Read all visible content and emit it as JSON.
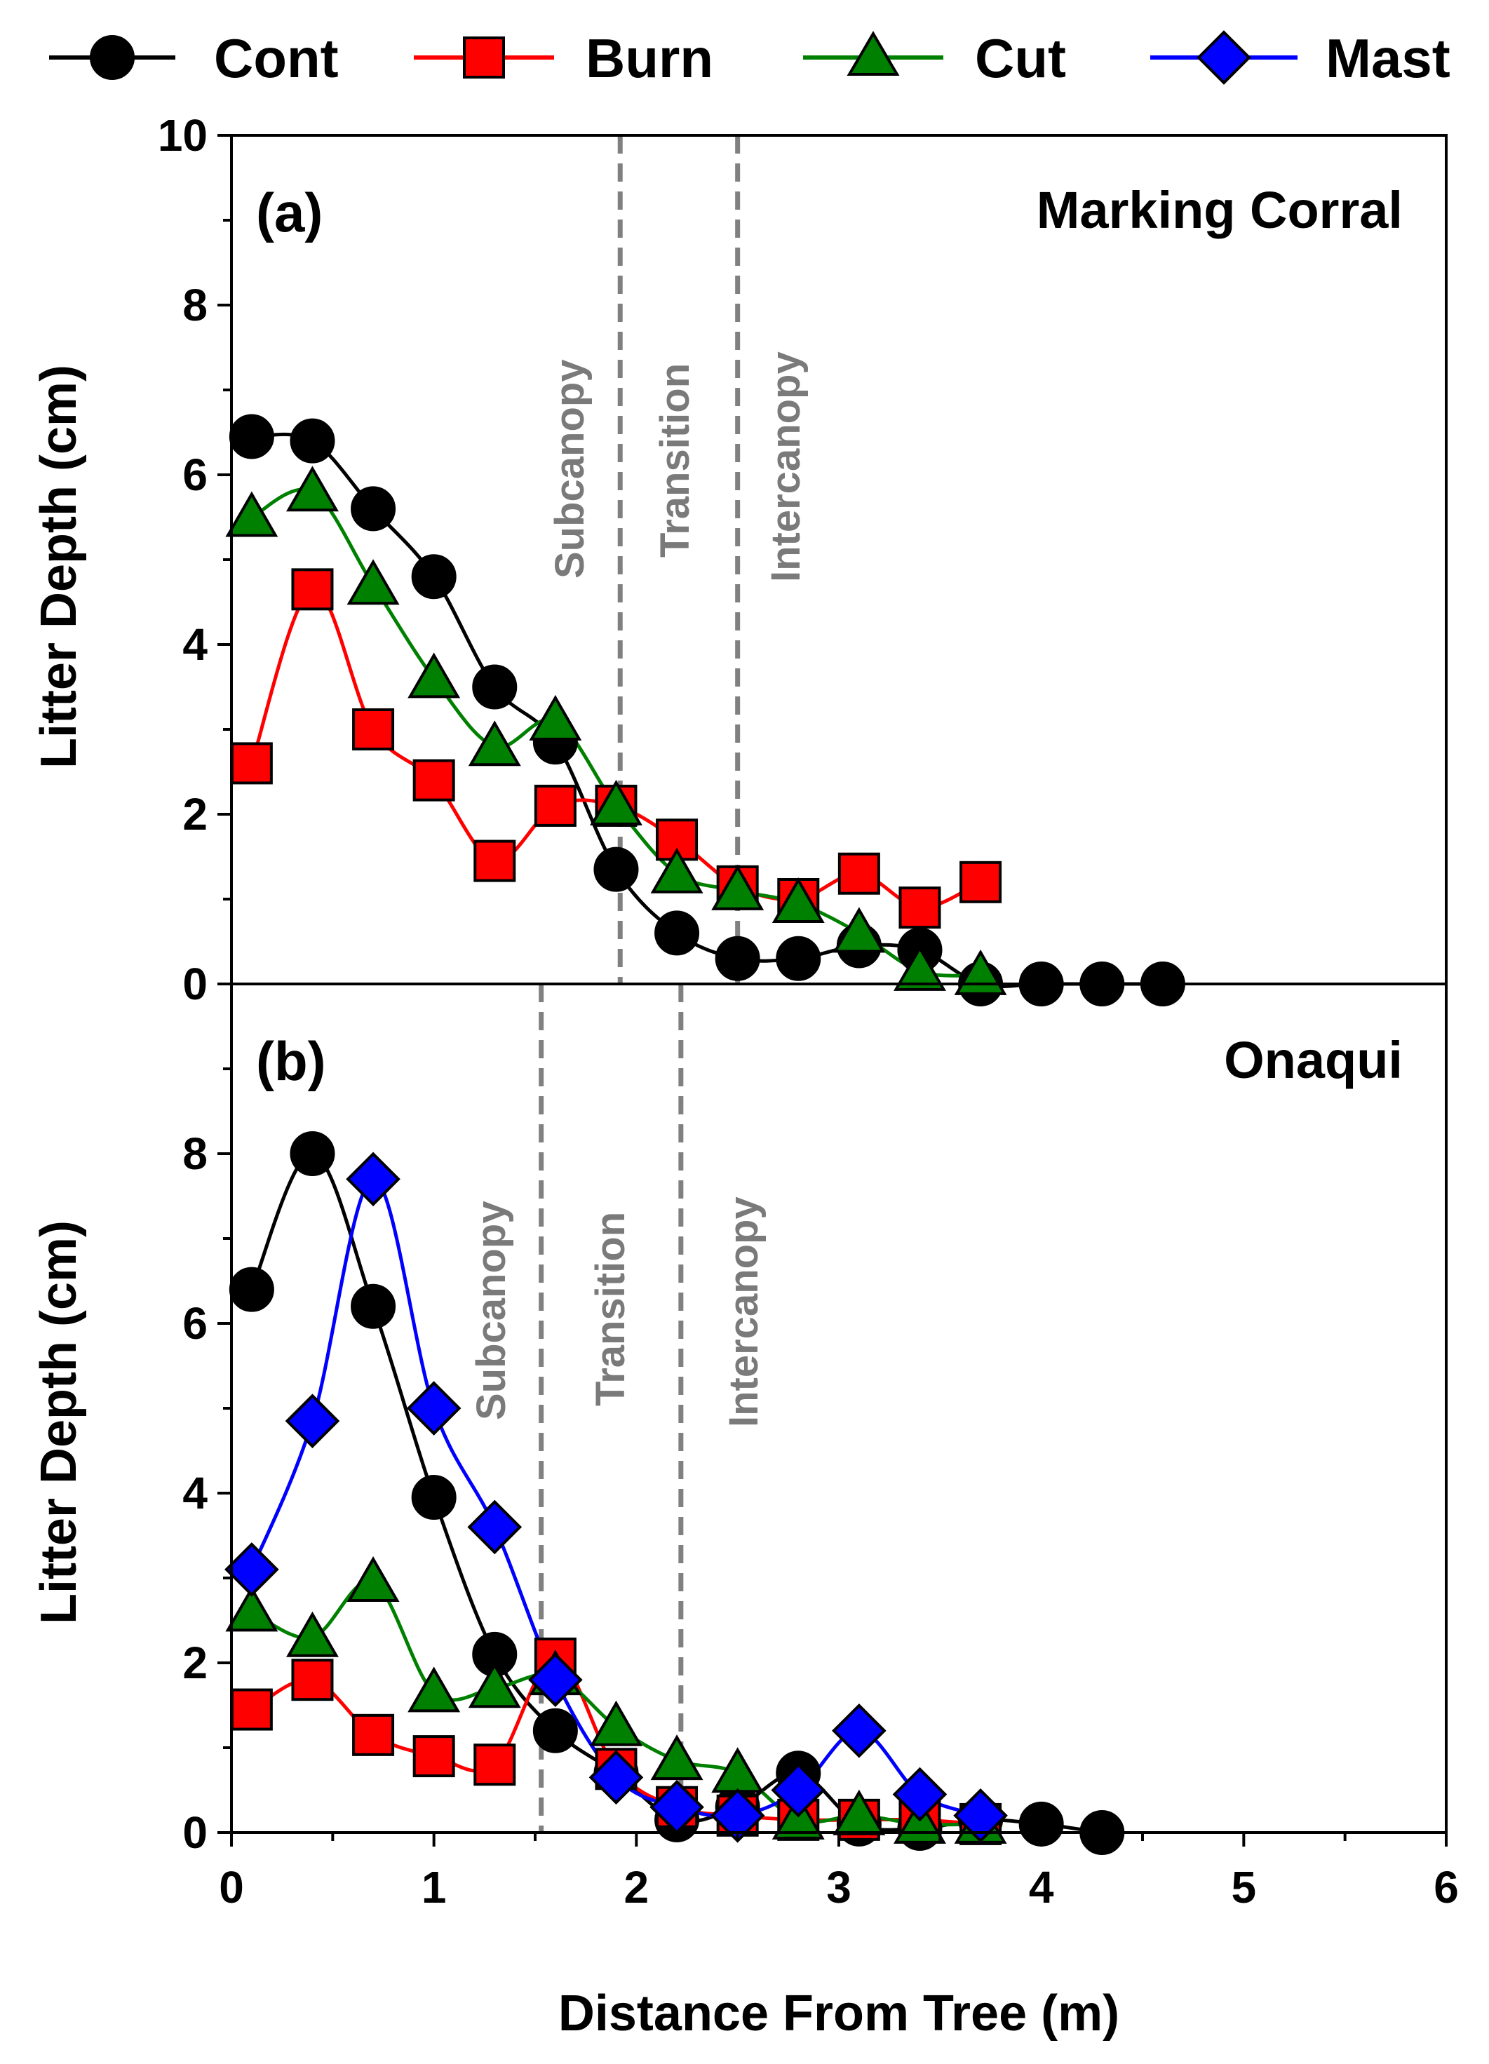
{
  "chart_data": [
    {
      "type": "line",
      "panel": "(a)",
      "title": "Marking Corral",
      "xlabel": "Distance From Tree (m)",
      "ylabel": "Litter Depth (cm)",
      "xlim": [
        0,
        6
      ],
      "ylim": [
        0,
        10
      ],
      "yticks": [
        "0",
        "2",
        "4",
        "6",
        "8",
        "10"
      ],
      "zone_labels": [
        "Subcanopy",
        "Transition",
        "Intercanopy"
      ],
      "zone_boundaries": [
        1.92,
        2.5
      ],
      "series": [
        {
          "name": "Cont",
          "color": "#000000",
          "marker": "circle",
          "x": [
            0.1,
            0.4,
            0.7,
            1.0,
            1.3,
            1.6,
            1.9,
            2.2,
            2.5,
            2.8,
            3.1,
            3.4,
            3.7,
            4.0,
            4.3,
            4.6
          ],
          "y": [
            6.45,
            6.4,
            5.6,
            4.8,
            3.5,
            2.85,
            1.35,
            0.6,
            0.3,
            0.3,
            0.45,
            0.4,
            0.0,
            0.0,
            0.0,
            0.0
          ]
        },
        {
          "name": "Burn",
          "color": "#ff0000",
          "marker": "square",
          "x": [
            0.1,
            0.4,
            0.7,
            1.0,
            1.3,
            1.6,
            1.9,
            2.2,
            2.5,
            2.8,
            3.1,
            3.4,
            3.7
          ],
          "y": [
            2.6,
            4.65,
            3.0,
            2.4,
            1.45,
            2.1,
            2.1,
            1.7,
            1.15,
            1.0,
            1.3,
            0.9,
            1.2
          ]
        },
        {
          "name": "Cut",
          "color": "#008000",
          "marker": "triangle",
          "x": [
            0.1,
            0.4,
            0.7,
            1.0,
            1.3,
            1.6,
            1.9,
            2.2,
            2.5,
            2.8,
            3.1,
            3.4,
            3.7
          ],
          "y": [
            5.5,
            5.8,
            4.7,
            3.6,
            2.8,
            3.1,
            2.1,
            1.3,
            1.1,
            0.95,
            0.6,
            0.15,
            0.1
          ]
        }
      ]
    },
    {
      "type": "line",
      "panel": "(b)",
      "title": "Onaqui",
      "xlabel": "Distance From Tree (m)",
      "ylabel": "Litter Depth (cm)",
      "xlim": [
        0,
        6
      ],
      "ylim": [
        0,
        10
      ],
      "xticks": [
        "0",
        "1",
        "2",
        "3",
        "4",
        "5",
        "6"
      ],
      "yticks": [
        "0",
        "2",
        "4",
        "6",
        "8"
      ],
      "zone_labels": [
        "Subcanopy",
        "Transition",
        "Intercanopy"
      ],
      "zone_boundaries": [
        1.53,
        2.22
      ],
      "series": [
        {
          "name": "Cont",
          "color": "#000000",
          "marker": "circle",
          "x": [
            0.1,
            0.4,
            0.7,
            1.0,
            1.3,
            1.6,
            1.9,
            2.2,
            2.5,
            2.8,
            3.1,
            3.4,
            3.7,
            4.0,
            4.3
          ],
          "y": [
            6.4,
            8.0,
            6.2,
            3.95,
            2.1,
            1.2,
            0.7,
            0.15,
            0.3,
            0.7,
            0.1,
            0.05,
            0.15,
            0.1,
            0.0
          ]
        },
        {
          "name": "Burn",
          "color": "#ff0000",
          "marker": "square",
          "x": [
            0.1,
            0.4,
            0.7,
            1.0,
            1.3,
            1.6,
            1.9,
            2.2,
            2.5,
            2.8,
            3.1,
            3.4,
            3.7
          ],
          "y": [
            1.45,
            1.8,
            1.15,
            0.9,
            0.8,
            2.05,
            0.75,
            0.3,
            0.2,
            0.15,
            0.15,
            0.15,
            0.1
          ]
        },
        {
          "name": "Cut",
          "color": "#008000",
          "marker": "triangle",
          "x": [
            0.1,
            0.4,
            0.7,
            1.0,
            1.3,
            1.6,
            1.9,
            2.2,
            2.5,
            2.8,
            3.1,
            3.4,
            3.7
          ],
          "y": [
            2.6,
            2.3,
            2.95,
            1.65,
            1.7,
            1.85,
            1.25,
            0.85,
            0.7,
            0.15,
            0.2,
            0.1,
            0.1
          ]
        },
        {
          "name": "Mast",
          "color": "#0000ff",
          "marker": "diamond",
          "x": [
            0.1,
            0.4,
            0.7,
            1.0,
            1.3,
            1.6,
            1.9,
            2.2,
            2.5,
            2.8,
            3.1,
            3.4,
            3.7
          ],
          "y": [
            3.1,
            4.85,
            7.7,
            5.0,
            3.6,
            1.8,
            0.65,
            0.3,
            0.2,
            0.5,
            1.2,
            0.45,
            0.2
          ]
        }
      ]
    }
  ],
  "legend": {
    "entries": [
      {
        "label": "Cont",
        "color": "#000000",
        "marker": "circle"
      },
      {
        "label": "Burn",
        "color": "#ff0000",
        "marker": "square"
      },
      {
        "label": "Cut",
        "color": "#008000",
        "marker": "triangle"
      },
      {
        "label": "Mast",
        "color": "#0000ff",
        "marker": "diamond"
      }
    ]
  },
  "marker_outline_color": "#000000",
  "zone_line_color": "#808080"
}
